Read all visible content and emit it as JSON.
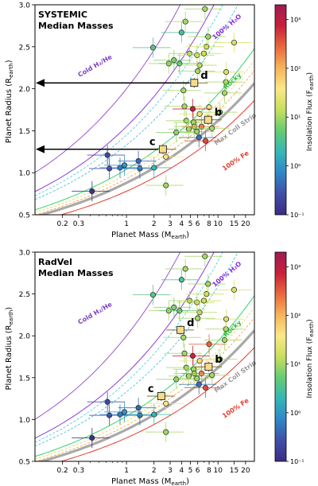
{
  "chart_data": [
    {
      "type": "scatter",
      "panel_title": [
        "SYSTEMIC",
        "Median Masses"
      ],
      "xlabel": "Planet Mass (M_earth)",
      "ylabel": "Planet Radius (R_earth)",
      "xlim": [
        0.1,
        25
      ],
      "ylim": [
        0.5,
        3.0
      ],
      "xscale": "log",
      "xticks": [
        0.2,
        0.3,
        1,
        2,
        3,
        4,
        5,
        6,
        8,
        10,
        15,
        20
      ],
      "xtick_labels": [
        "0.2",
        "0.3",
        "1",
        "2",
        "3",
        "4",
        "5",
        "6",
        "8",
        "10",
        "15",
        "20"
      ],
      "yticks": [
        0.5,
        1.0,
        1.5,
        2.0,
        2.5,
        3.0
      ],
      "ytick_labels": [
        "0.5",
        "1.0",
        "1.5",
        "2.0",
        "2.5",
        "3.0"
      ],
      "curve_labels": [
        "Cold H₂/He",
        "100% H₂O",
        "Rocky",
        "Max Coll Strip",
        "100% Fe"
      ],
      "colorbar": {
        "label": "Insolation Flux (F_earth)",
        "scale": "log",
        "range": [
          0.1,
          2000
        ],
        "tick_labels": [
          "10⁻¹",
          "10⁰",
          "10¹",
          "10²",
          "10³"
        ]
      },
      "highlighted": [
        {
          "label": "b",
          "mass": 7.8,
          "radius": 1.63
        },
        {
          "label": "c",
          "mass": 2.5,
          "radius": 1.28
        },
        {
          "label": "d",
          "mass": 5.5,
          "radius": 2.07
        }
      ],
      "arrows_at_radius": [
        2.07,
        1.28
      ],
      "points": [
        {
          "mass": 0.62,
          "radius": 1.21,
          "flux": 0.22
        },
        {
          "mass": 0.65,
          "radius": 1.05,
          "flux": 0.25
        },
        {
          "mass": 0.85,
          "radius": 1.06,
          "flux": 0.6
        },
        {
          "mass": 0.95,
          "radius": 1.09,
          "flux": 1.0
        },
        {
          "mass": 0.42,
          "radius": 0.78,
          "flux": 0.12
        },
        {
          "mass": 1.35,
          "radius": 1.14,
          "flux": 0.4
        },
        {
          "mass": 1.4,
          "radius": 1.05,
          "flux": 0.5
        },
        {
          "mass": 2.0,
          "radius": 1.06,
          "flux": 2.0
        },
        {
          "mass": 2.7,
          "radius": 0.85,
          "flux": 10
        },
        {
          "mass": 1.95,
          "radius": 2.49,
          "flux": 4
        },
        {
          "mass": 2.9,
          "radius": 2.3,
          "flux": 10
        },
        {
          "mass": 3.3,
          "radius": 2.34,
          "flux": 7
        },
        {
          "mass": 3.8,
          "radius": 2.3,
          "flux": 5
        },
        {
          "mass": 4.0,
          "radius": 2.67,
          "flux": 3
        },
        {
          "mass": 4.4,
          "radius": 2.8,
          "flux": 10
        },
        {
          "mass": 4.9,
          "radius": 2.42,
          "flux": 10
        },
        {
          "mass": 5.9,
          "radius": 2.4,
          "flux": 14
        },
        {
          "mass": 6.3,
          "radius": 2.28,
          "flux": 12
        },
        {
          "mass": 7.5,
          "radius": 2.5,
          "flux": 15
        },
        {
          "mass": 7.0,
          "radius": 2.42,
          "flux": 15
        },
        {
          "mass": 7.2,
          "radius": 2.95,
          "flux": 10
        },
        {
          "mass": 7.8,
          "radius": 2.62,
          "flux": 10
        },
        {
          "mass": 6.0,
          "radius": 2.21,
          "flux": 10
        },
        {
          "mass": 4.2,
          "radius": 1.98,
          "flux": 10
        },
        {
          "mass": 4.3,
          "radius": 1.79,
          "flux": 10
        },
        {
          "mass": 4.5,
          "radius": 1.62,
          "flux": 10
        },
        {
          "mass": 3.5,
          "radius": 1.48,
          "flux": 8
        },
        {
          "mass": 4.8,
          "radius": 1.52,
          "flux": 10
        },
        {
          "mass": 5.4,
          "radius": 1.6,
          "flux": 10
        },
        {
          "mass": 5.5,
          "radius": 1.55,
          "flux": 10
        },
        {
          "mass": 5.9,
          "radius": 1.49,
          "flux": 10
        },
        {
          "mass": 6.3,
          "radius": 1.7,
          "flux": 50
        },
        {
          "mass": 6.6,
          "radius": 1.55,
          "flux": 200
        },
        {
          "mass": 7.3,
          "radius": 1.38,
          "flux": 400
        },
        {
          "mass": 6.2,
          "radius": 1.42,
          "flux": 0.5
        },
        {
          "mass": 8.0,
          "radius": 1.78,
          "flux": 30
        },
        {
          "mass": 8.6,
          "radius": 1.53,
          "flux": 10
        },
        {
          "mass": 10.5,
          "radius": 1.72,
          "flux": 10
        },
        {
          "mass": 11.8,
          "radius": 1.95,
          "flux": 10
        },
        {
          "mass": 12.2,
          "radius": 2.08,
          "flux": 10
        },
        {
          "mass": 12.3,
          "radius": 2.2,
          "flux": 20
        },
        {
          "mass": 15.0,
          "radius": 2.55,
          "flux": 20
        },
        {
          "mass": 5.3,
          "radius": 1.76,
          "flux": 800
        },
        {
          "mass": 2.7,
          "radius": 1.19,
          "flux": 40
        }
      ]
    },
    {
      "type": "scatter",
      "panel_title": [
        "RadVel",
        "Median Masses"
      ],
      "xlabel": "Planet Mass (M_earth)",
      "ylabel": "Planet Radius (R_earth)",
      "xlim": [
        0.1,
        25
      ],
      "ylim": [
        0.5,
        3.0
      ],
      "xscale": "log",
      "xticks": [
        0.2,
        0.3,
        1,
        2,
        3,
        4,
        5,
        6,
        8,
        10,
        15,
        20
      ],
      "xtick_labels": [
        "0.2",
        "0.3",
        "1",
        "2",
        "3",
        "4",
        "5",
        "6",
        "8",
        "10",
        "15",
        "20"
      ],
      "yticks": [
        0.5,
        1.0,
        1.5,
        2.0,
        2.5,
        3.0
      ],
      "ytick_labels": [
        "0.5",
        "1.0",
        "1.5",
        "2.0",
        "2.5",
        "3.0"
      ],
      "curve_labels": [
        "Cold H₂/He",
        "100% H₂O",
        "Rocky",
        "Max Coll Strip",
        "100% Fe"
      ],
      "colorbar": {
        "label": "Insolation Flux (F_earth)",
        "scale": "log",
        "range": [
          0.1,
          2000
        ],
        "tick_labels": [
          "10⁻¹",
          "10⁰",
          "10¹",
          "10²",
          "10³"
        ]
      },
      "highlighted": [
        {
          "label": "b",
          "mass": 7.9,
          "radius": 1.63
        },
        {
          "label": "c",
          "mass": 2.4,
          "radius": 1.28
        },
        {
          "label": "d",
          "mass": 3.9,
          "radius": 2.07
        }
      ],
      "arrows_at_radius": [],
      "points": [
        {
          "mass": 0.62,
          "radius": 1.21,
          "flux": 0.22
        },
        {
          "mass": 0.65,
          "radius": 1.05,
          "flux": 0.25
        },
        {
          "mass": 0.85,
          "radius": 1.06,
          "flux": 0.6
        },
        {
          "mass": 0.95,
          "radius": 1.09,
          "flux": 1.0
        },
        {
          "mass": 0.42,
          "radius": 0.78,
          "flux": 0.12
        },
        {
          "mass": 1.35,
          "radius": 1.14,
          "flux": 0.4
        },
        {
          "mass": 1.4,
          "radius": 1.05,
          "flux": 0.5
        },
        {
          "mass": 2.0,
          "radius": 1.06,
          "flux": 2.0
        },
        {
          "mass": 2.7,
          "radius": 0.85,
          "flux": 10
        },
        {
          "mass": 1.95,
          "radius": 2.49,
          "flux": 4
        },
        {
          "mass": 2.9,
          "radius": 2.3,
          "flux": 10
        },
        {
          "mass": 3.3,
          "radius": 2.34,
          "flux": 7
        },
        {
          "mass": 3.8,
          "radius": 2.3,
          "flux": 5
        },
        {
          "mass": 4.0,
          "radius": 2.67,
          "flux": 3
        },
        {
          "mass": 4.4,
          "radius": 2.8,
          "flux": 10
        },
        {
          "mass": 4.9,
          "radius": 2.42,
          "flux": 10
        },
        {
          "mass": 5.9,
          "radius": 2.4,
          "flux": 14
        },
        {
          "mass": 6.3,
          "radius": 2.28,
          "flux": 12
        },
        {
          "mass": 7.5,
          "radius": 2.5,
          "flux": 15
        },
        {
          "mass": 7.0,
          "radius": 2.42,
          "flux": 15
        },
        {
          "mass": 7.2,
          "radius": 2.95,
          "flux": 10
        },
        {
          "mass": 7.8,
          "radius": 2.62,
          "flux": 10
        },
        {
          "mass": 6.0,
          "radius": 2.21,
          "flux": 10
        },
        {
          "mass": 4.2,
          "radius": 1.98,
          "flux": 10
        },
        {
          "mass": 4.3,
          "radius": 1.79,
          "flux": 10
        },
        {
          "mass": 4.5,
          "radius": 1.62,
          "flux": 10
        },
        {
          "mass": 3.5,
          "radius": 1.48,
          "flux": 8
        },
        {
          "mass": 4.8,
          "radius": 1.52,
          "flux": 10
        },
        {
          "mass": 5.4,
          "radius": 1.6,
          "flux": 10
        },
        {
          "mass": 5.5,
          "radius": 1.55,
          "flux": 10
        },
        {
          "mass": 5.9,
          "radius": 1.49,
          "flux": 10
        },
        {
          "mass": 6.3,
          "radius": 1.7,
          "flux": 50
        },
        {
          "mass": 6.6,
          "radius": 1.55,
          "flux": 200
        },
        {
          "mass": 7.3,
          "radius": 1.38,
          "flux": 400
        },
        {
          "mass": 6.2,
          "radius": 1.42,
          "flux": 0.5
        },
        {
          "mass": 8.0,
          "radius": 1.9,
          "flux": 300
        },
        {
          "mass": 8.6,
          "radius": 1.53,
          "flux": 10
        },
        {
          "mass": 10.5,
          "radius": 1.72,
          "flux": 10
        },
        {
          "mass": 11.8,
          "radius": 1.95,
          "flux": 10
        },
        {
          "mass": 12.2,
          "radius": 2.08,
          "flux": 10
        },
        {
          "mass": 12.3,
          "radius": 2.2,
          "flux": 20
        },
        {
          "mass": 15.0,
          "radius": 2.55,
          "flux": 20
        },
        {
          "mass": 5.3,
          "radius": 1.76,
          "flux": 800
        },
        {
          "mass": 2.7,
          "radius": 1.19,
          "flux": 40
        }
      ]
    }
  ]
}
